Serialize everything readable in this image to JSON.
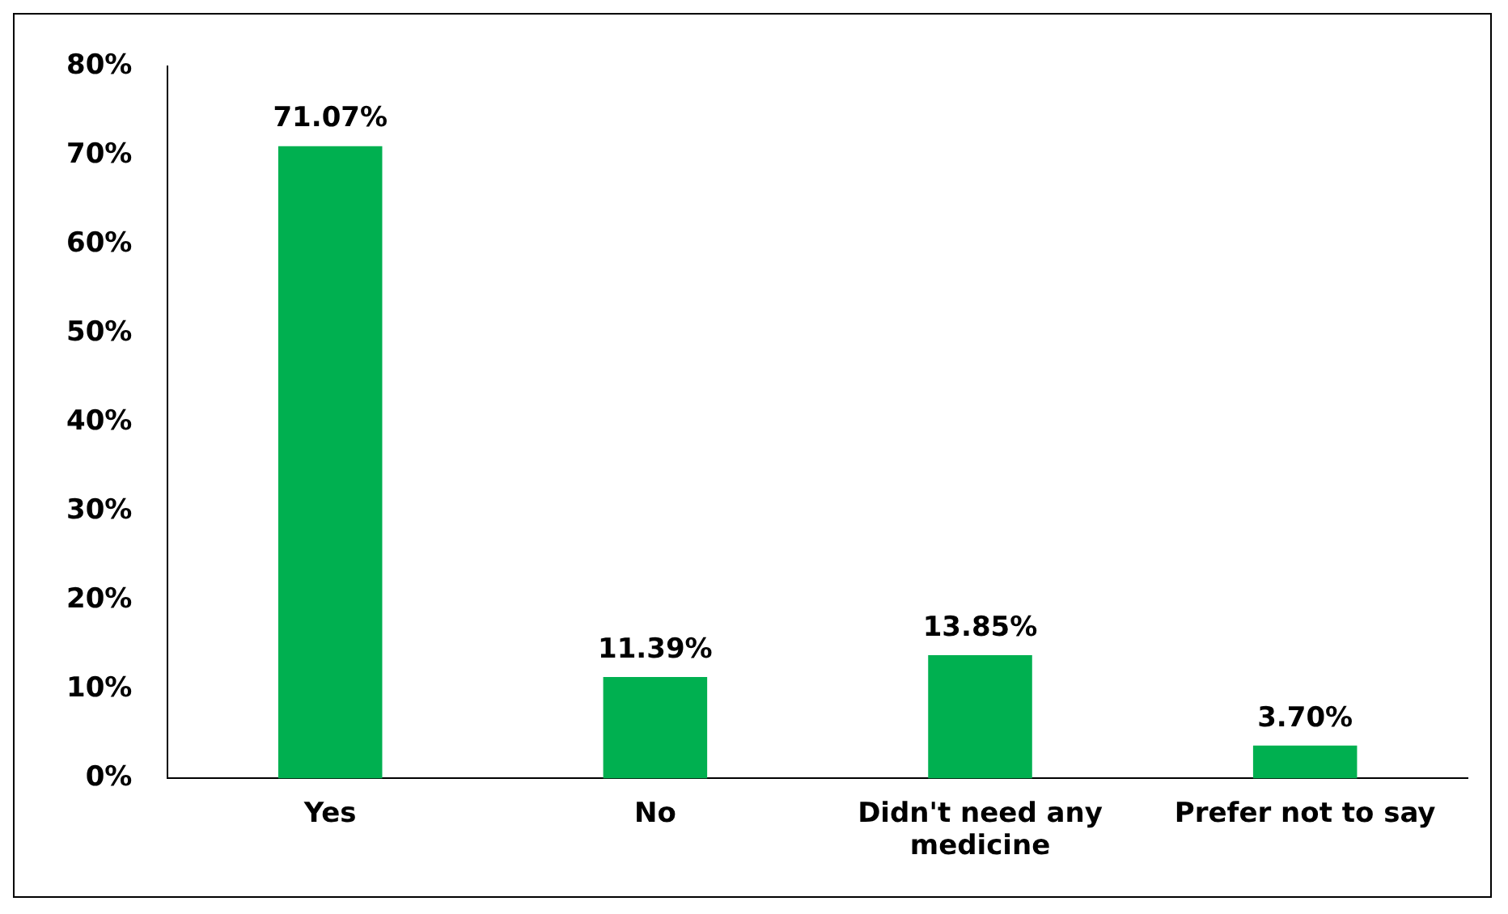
{
  "chart_data": {
    "type": "bar",
    "categories": [
      "Yes",
      "No",
      "Didn't need any medicine",
      "Prefer not to say"
    ],
    "values": [
      71.07,
      11.39,
      13.85,
      3.7
    ],
    "value_labels": [
      "71.07%",
      "11.39%",
      "13.85%",
      "3.70%"
    ],
    "color": "#00b050",
    "ylim": [
      0,
      80
    ],
    "yticks": [
      {
        "value": 0,
        "label": "0%"
      },
      {
        "value": 10,
        "label": "10%"
      },
      {
        "value": 20,
        "label": "20%"
      },
      {
        "value": 30,
        "label": "30%"
      },
      {
        "value": 40,
        "label": "40%"
      },
      {
        "value": 50,
        "label": "50%"
      },
      {
        "value": 60,
        "label": "60%"
      },
      {
        "value": 70,
        "label": "70%"
      },
      {
        "value": 80,
        "label": "80%"
      }
    ],
    "grid": false,
    "legend": false
  }
}
